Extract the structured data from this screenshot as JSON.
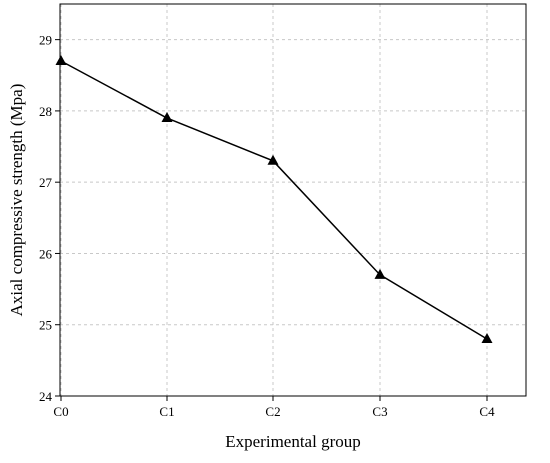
{
  "chart_data": {
    "type": "line",
    "title": "",
    "xlabel": "Experimental group",
    "ylabel": "Axial compressive strength (Mpa)",
    "categories": [
      "C0",
      "C1",
      "C2",
      "C3",
      "C4"
    ],
    "series": [
      {
        "values": [
          28.7,
          27.9,
          27.3,
          25.7,
          24.8
        ],
        "marker": "triangle",
        "color": "#000000"
      }
    ],
    "ylim": [
      24,
      29.5
    ],
    "yticks": [
      24,
      25,
      26,
      27,
      28,
      29
    ],
    "grid": true,
    "legend": "none"
  }
}
